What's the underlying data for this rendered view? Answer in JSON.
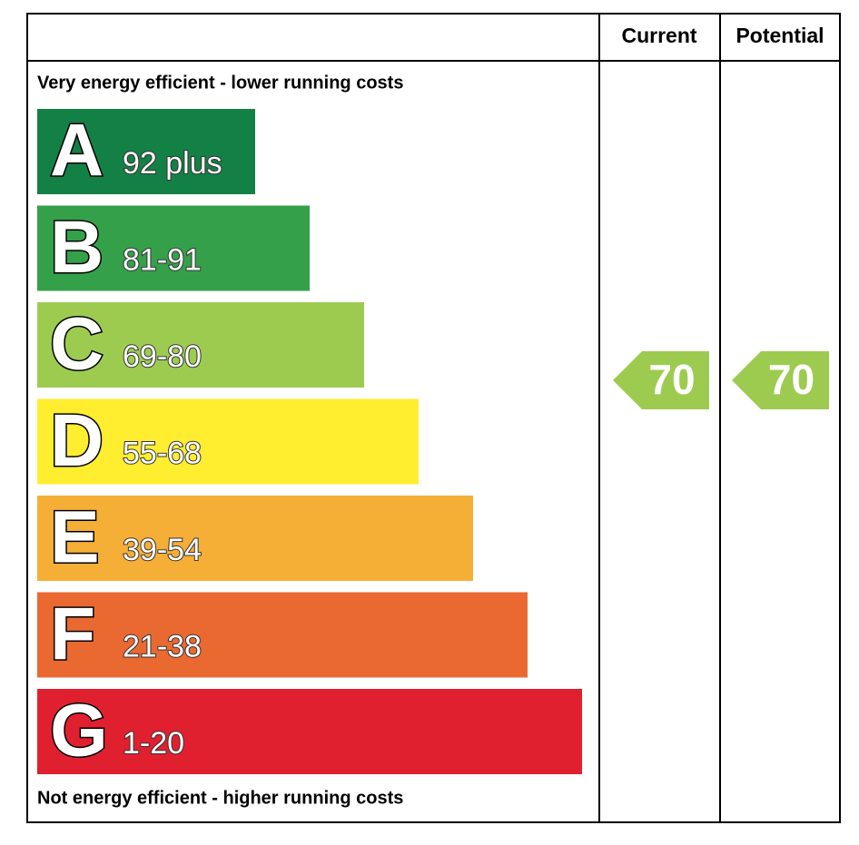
{
  "header": {
    "current": "Current",
    "potential": "Potential"
  },
  "top_note": "Very energy efficient - lower running costs",
  "bottom_note": "Not energy efficient - higher running costs",
  "bands": [
    {
      "letter": "A",
      "range": "92 plus",
      "color": "#138046"
    },
    {
      "letter": "B",
      "range": "81-91",
      "color": "#34a04a"
    },
    {
      "letter": "C",
      "range": "69-80",
      "color": "#9dcb50"
    },
    {
      "letter": "D",
      "range": "55-68",
      "color": "#ffed30"
    },
    {
      "letter": "E",
      "range": "39-54",
      "color": "#f5ae36"
    },
    {
      "letter": "F",
      "range": "21-38",
      "color": "#ea6931"
    },
    {
      "letter": "G",
      "range": "1-20",
      "color": "#e1202f"
    }
  ],
  "current": {
    "rating": "70",
    "color": "#9dcb50"
  },
  "potential": {
    "rating": "70",
    "color": "#9dcb50"
  }
}
